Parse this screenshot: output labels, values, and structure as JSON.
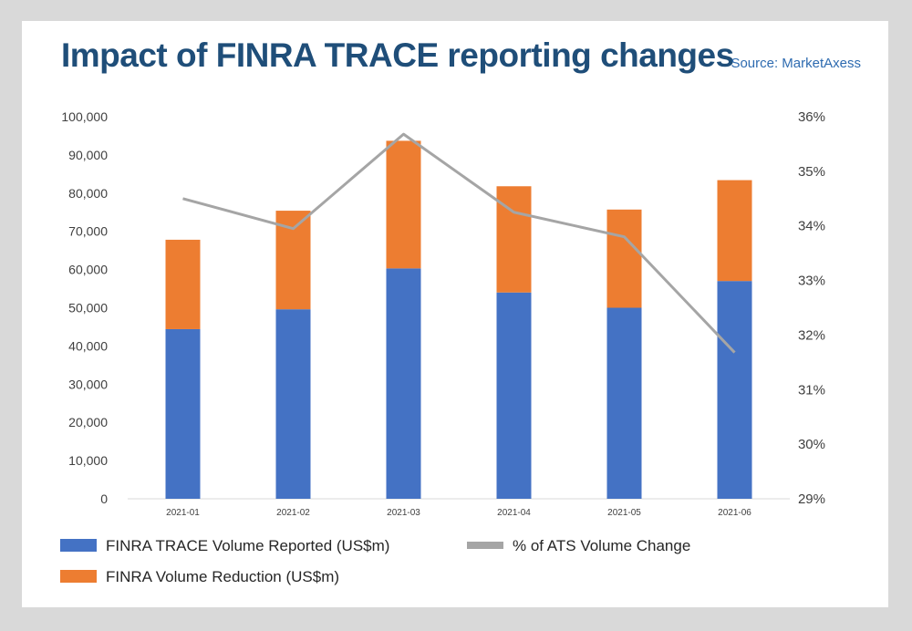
{
  "header": {
    "title": "Impact of FINRA TRACE reporting changes",
    "source": "Source: MarketAxess"
  },
  "chart_data": {
    "type": "bar",
    "stacked": true,
    "categories": [
      "2021-01",
      "2021-02",
      "2021-03",
      "2021-04",
      "2021-05",
      "2021-06"
    ],
    "series": [
      {
        "name": "FINRA TRACE Volume Reported (US$m)",
        "type": "bar",
        "axis": "left",
        "color": "#4472c4",
        "values": [
          44400,
          49600,
          60300,
          54000,
          50000,
          57000
        ]
      },
      {
        "name": "FINRA Volume Reduction (US$m)",
        "type": "bar",
        "axis": "left",
        "color": "#ed7d31",
        "values": [
          23400,
          25800,
          33400,
          27800,
          25700,
          26400
        ]
      },
      {
        "name": "% of ATS Volume Change",
        "type": "line",
        "axis": "right",
        "color": "#a5a5a5",
        "values": [
          34.5,
          33.95,
          35.68,
          34.25,
          33.8,
          31.68
        ]
      }
    ],
    "ylim_left": [
      0,
      100000
    ],
    "yticks_left": [
      "0",
      "10,000",
      "20,000",
      "30,000",
      "40,000",
      "50,000",
      "60,000",
      "70,000",
      "80,000",
      "90,000",
      "100,000"
    ],
    "ylim_right": [
      29,
      36
    ],
    "yticks_right": [
      "29%",
      "30%",
      "31%",
      "32%",
      "33%",
      "34%",
      "35%",
      "36%"
    ],
    "grid": false,
    "legend_position": "bottom"
  }
}
